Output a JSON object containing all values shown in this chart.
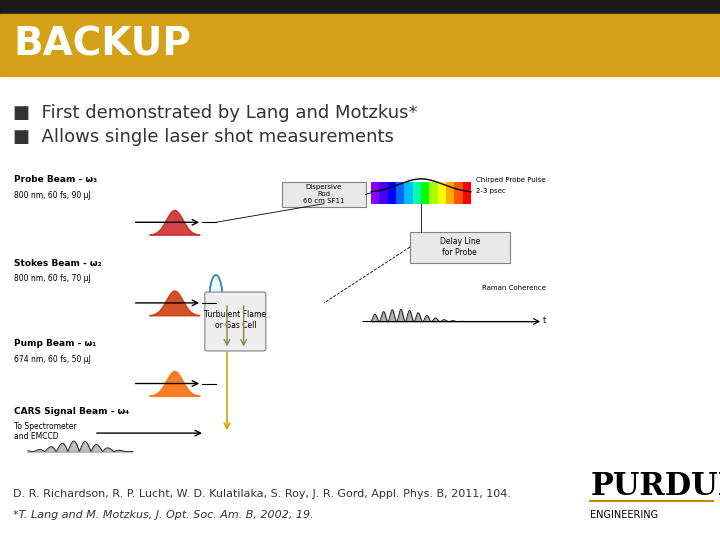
{
  "title": "BACKUP",
  "title_bg_color": "#D4A017",
  "title_text_color": "#FFFFFF",
  "top_bar_color": "#1a1a1a",
  "bullet1": "First demonstrated by Lang and Motzkus*",
  "bullet2": "Allows single laser shot measurements",
  "footnote1": "D. R. Richardson, R. P. Lucht, W. D. Kulatilaka, S. Roy, J. R. Gord, Appl. Phys. B, 2011, 104.",
  "footnote2": "*T. Lang and M. Motzkus, J. Opt. Soc. Am. B, 2002, 19.",
  "bg_color": "#FFFFFF",
  "bullet_color": "#333333",
  "footnote_color": "#333333",
  "title_fontsize": 28,
  "bullet_fontsize": 13,
  "footnote_fontsize": 8,
  "purdue_gold": "#C28B00",
  "purdue_text": "PURDUE",
  "purdue_sub": "ENGINEERING"
}
